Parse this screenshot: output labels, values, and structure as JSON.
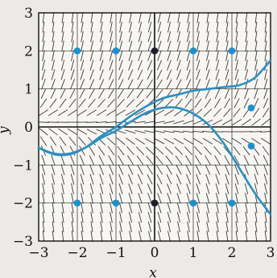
{
  "chart_data": {
    "type": "slope-field",
    "title": "",
    "xlabel": "x",
    "ylabel": "y",
    "xlim": [
      -3,
      3
    ],
    "ylim": [
      -3,
      3
    ],
    "x_ticks": [
      -3,
      -2,
      -1,
      0,
      1,
      2,
      3
    ],
    "y_ticks": [
      -3,
      -2,
      -1,
      0,
      1,
      2,
      3
    ],
    "x_tick_labels": [
      "−3",
      "−2",
      "−1",
      "0",
      "1",
      "2",
      "3"
    ],
    "y_tick_labels": [
      "−3",
      "−2",
      "−1",
      "0",
      "1",
      "2",
      "3"
    ],
    "grid": true,
    "grid_lines": [
      -3,
      -2,
      -1,
      0,
      1,
      2,
      3
    ],
    "slope_field": {
      "x_step": 0.25,
      "y_step": 0.25,
      "slopes": [
        [
          -0.5,
          1.2,
          1.1,
          -0.6
        ],
        [
          0.0,
          1.0,
          1.4,
          -0.1
        ],
        [
          0.5,
          0.9,
          1.7,
          0.4
        ],
        [
          1.0,
          0.7,
          2.0,
          0.8
        ],
        [
          1.5,
          0.9,
          2.2,
          1.4
        ],
        [
          2.0,
          1.2,
          2.5,
          2.0
        ],
        [
          2.5,
          1.6,
          2.8,
          2.6
        ],
        [
          3.0,
          2.0,
          3.0,
          3.0
        ]
      ]
    },
    "series": [
      {
        "points": [
          [
            -3,
            -0.55
          ],
          [
            -2.6,
            -0.72
          ],
          [
            -2.2,
            -0.72
          ],
          [
            -1.8,
            -0.55
          ],
          [
            -1.4,
            -0.25
          ],
          [
            -1.0,
            0.0
          ],
          [
            -0.6,
            0.3
          ],
          [
            -0.2,
            0.55
          ],
          [
            0.2,
            0.75
          ],
          [
            0.6,
            0.85
          ],
          [
            1.0,
            0.95
          ],
          [
            1.4,
            1.0
          ],
          [
            1.8,
            1.05
          ],
          [
            2.2,
            1.1
          ],
          [
            2.6,
            1.3
          ],
          [
            3.0,
            1.75
          ]
        ]
      },
      {
        "points": [
          [
            -3,
            -0.55
          ],
          [
            -2.6,
            -0.7
          ],
          [
            -2.2,
            -0.7
          ],
          [
            -1.8,
            -0.55
          ],
          [
            -1.4,
            -0.3
          ],
          [
            -1.0,
            -0.1
          ],
          [
            -0.6,
            0.15
          ],
          [
            -0.2,
            0.38
          ],
          [
            0.2,
            0.5
          ],
          [
            0.6,
            0.5
          ],
          [
            1.0,
            0.35
          ],
          [
            1.4,
            0.05
          ],
          [
            1.8,
            -0.45
          ],
          [
            2.2,
            -1.1
          ],
          [
            2.6,
            -1.75
          ],
          [
            3.0,
            -2.3
          ]
        ]
      }
    ],
    "points": [
      [
        -2,
        2
      ],
      [
        -1,
        2
      ],
      [
        0,
        2
      ],
      [
        1,
        2
      ],
      [
        2,
        2
      ],
      [
        2.5,
        0.5
      ],
      [
        2.5,
        -0.5
      ],
      [
        -2,
        -2
      ],
      [
        -1,
        -2
      ],
      [
        0,
        -2
      ],
      [
        1,
        -2
      ],
      [
        2,
        -2
      ]
    ],
    "colors": {
      "curve": "#2b8fc2",
      "point": "#1e90cc",
      "point_on_axis": "#1b1f2a",
      "ink": "#111111",
      "grid": "#2a2a2a"
    }
  }
}
